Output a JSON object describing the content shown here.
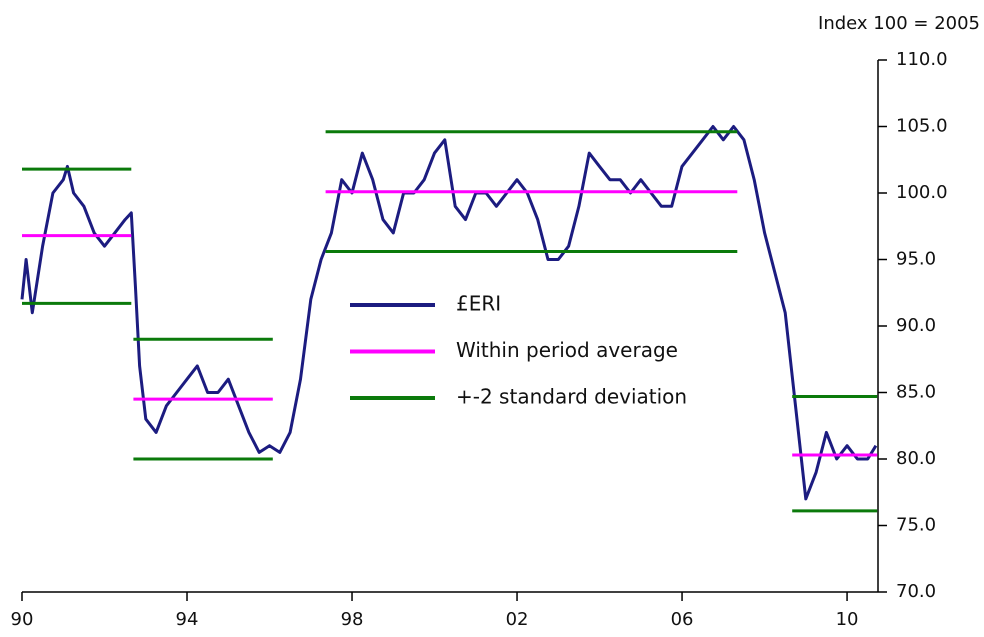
{
  "chart_data": {
    "type": "line",
    "y_axis_label": "Index 100 = 2005",
    "xlim": [
      1990,
      2010.75
    ],
    "xticks": [
      {
        "value": 1990,
        "label": "90"
      },
      {
        "value": 1994,
        "label": "94"
      },
      {
        "value": 1998,
        "label": "98"
      },
      {
        "value": 2002,
        "label": "02"
      },
      {
        "value": 2006,
        "label": "06"
      },
      {
        "value": 2010,
        "label": "10"
      }
    ],
    "ylim": [
      70,
      110
    ],
    "yticks": [
      {
        "value": 70,
        "label": "70.0"
      },
      {
        "value": 75,
        "label": "75.0"
      },
      {
        "value": 80,
        "label": "80.0"
      },
      {
        "value": 85,
        "label": "85.0"
      },
      {
        "value": 90,
        "label": "90.0"
      },
      {
        "value": 95,
        "label": "95.0"
      },
      {
        "value": 100,
        "label": "100.0"
      },
      {
        "value": 105,
        "label": "105.0"
      },
      {
        "value": 110,
        "label": "110.0"
      }
    ],
    "series": [
      {
        "name": "£ERI",
        "color": "#1c1c80",
        "x": [
          1990,
          1990.1,
          1990.25,
          1990.5,
          1990.75,
          1991,
          1991.1,
          1991.25,
          1991.5,
          1991.75,
          1992,
          1992.25,
          1992.5,
          1992.65,
          1992.75,
          1992.85,
          1993,
          1993.25,
          1993.5,
          1993.75,
          1994,
          1994.25,
          1994.5,
          1994.75,
          1995,
          1995.25,
          1995.5,
          1995.75,
          1996,
          1996.25,
          1996.5,
          1996.75,
          1997,
          1997.25,
          1997.5,
          1997.75,
          1998,
          1998.25,
          1998.5,
          1998.75,
          1999,
          1999.25,
          1999.5,
          1999.75,
          2000,
          2000.25,
          2000.5,
          2000.75,
          2001,
          2001.25,
          2001.5,
          2001.75,
          2002,
          2002.25,
          2002.5,
          2002.75,
          2003,
          2003.25,
          2003.5,
          2003.75,
          2004,
          2004.25,
          2004.5,
          2004.75,
          2005,
          2005.25,
          2005.5,
          2005.75,
          2006,
          2006.25,
          2006.5,
          2006.75,
          2007,
          2007.25,
          2007.5,
          2007.75,
          2008,
          2008.25,
          2008.5,
          2008.75,
          2009,
          2009.25,
          2009.5,
          2009.75,
          2010,
          2010.25,
          2010.5,
          2010.7
        ],
        "values": [
          92,
          95,
          91,
          96,
          100,
          101,
          102,
          100,
          99,
          97,
          96,
          97,
          98,
          98.5,
          93,
          87,
          83,
          82,
          84,
          85,
          86,
          87,
          85,
          85,
          86,
          84,
          82,
          80.5,
          81,
          80.5,
          82,
          86,
          92,
          95,
          97,
          101,
          100,
          103,
          101,
          98,
          97,
          100,
          100,
          101,
          103,
          104,
          99,
          98,
          100,
          100,
          99,
          100,
          101,
          100,
          98,
          95,
          95,
          96,
          99,
          103,
          102,
          101,
          101,
          100,
          101,
          100,
          99,
          99,
          102,
          103,
          104,
          105,
          104,
          105,
          104,
          101,
          97,
          94,
          91,
          84,
          77,
          79,
          82,
          80,
          81,
          80,
          80,
          81
        ]
      },
      {
        "name": "Within period average",
        "color": "#ff00ff",
        "x": [
          1990,
          1992.65,
          null,
          1992.7,
          1996.08,
          null,
          1997.36,
          2007.34,
          null,
          2008.67,
          2010.73
        ],
        "values": [
          96.8,
          96.8,
          null,
          84.5,
          84.5,
          null,
          100.1,
          100.1,
          null,
          80.3,
          80.3
        ]
      },
      {
        "name": "+-2 standard deviation",
        "color": "#0b7a0b",
        "x": [
          1990,
          1992.65,
          null,
          1990,
          1992.65,
          null,
          1992.7,
          1996.08,
          null,
          1992.7,
          1996.08,
          null,
          1997.36,
          2007.34,
          null,
          1997.36,
          2007.34,
          null,
          2008.67,
          2010.73,
          null,
          2008.67,
          2010.73
        ],
        "values": [
          101.8,
          101.8,
          null,
          91.7,
          91.7,
          null,
          89.0,
          89.0,
          null,
          80.0,
          80.0,
          null,
          104.6,
          104.6,
          null,
          95.6,
          95.6,
          null,
          84.7,
          84.7,
          null,
          76.1,
          76.1
        ]
      }
    ]
  }
}
